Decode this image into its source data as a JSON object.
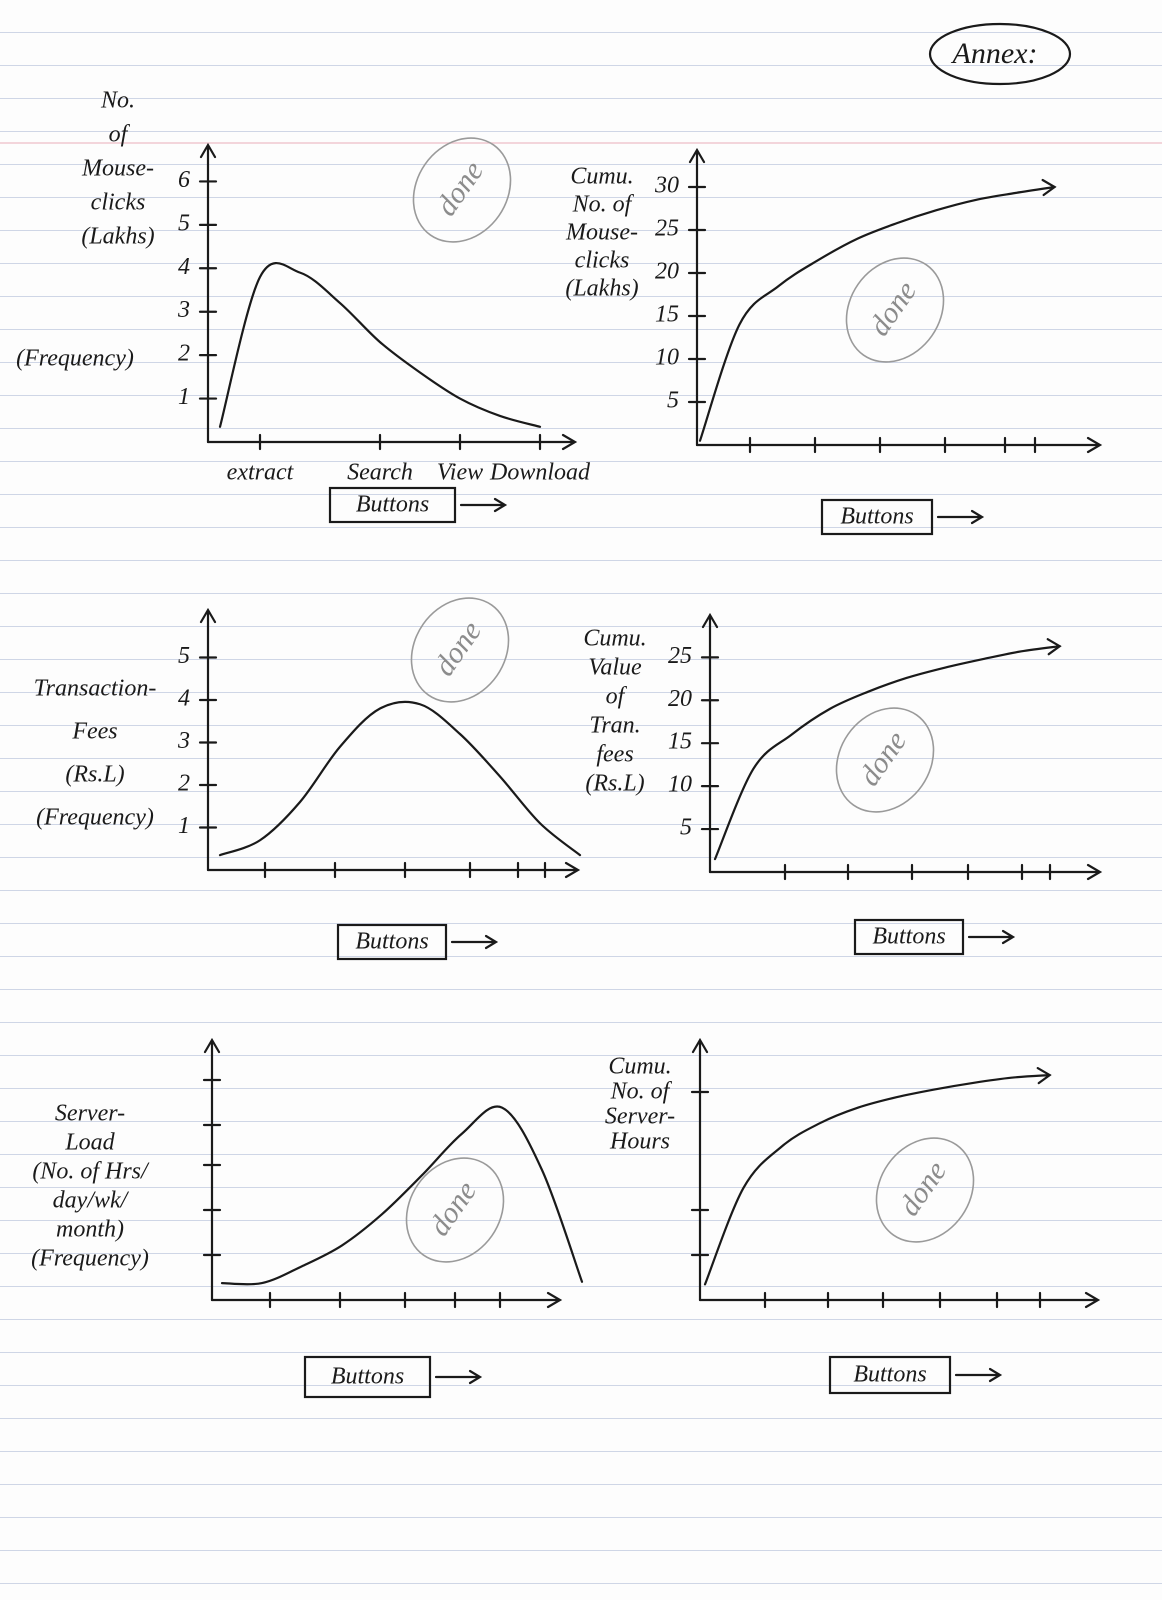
{
  "title": "Annex:",
  "chart_data": [
    {
      "type": "line",
      "ylabel": [
        "No.",
        "of",
        "Mouse-",
        "clicks",
        "(Lakhs)"
      ],
      "ylabel_note": "(Frequency)",
      "xlabel": "Buttons",
      "annotation": "done",
      "categories": [
        null,
        "extract",
        null,
        null,
        "Search",
        null,
        "View",
        null,
        "Download"
      ],
      "values": [
        0.35,
        3.8,
        3.9,
        3.2,
        2.3,
        1.6,
        1.0,
        0.6,
        0.35
      ],
      "ylim": [
        0,
        7
      ],
      "yticks": [
        1,
        2,
        3,
        4,
        5,
        6
      ]
    },
    {
      "type": "line",
      "ylabel": [
        "Cumu.",
        "No. of",
        "Mouse-",
        "clicks",
        "(Lakhs)"
      ],
      "xlabel": "Buttons",
      "annotation": "done",
      "categories": [
        null,
        null,
        null,
        null,
        null,
        null,
        null,
        null,
        null,
        null
      ],
      "values": [
        0.5,
        14,
        18.5,
        21.5,
        24,
        25.8,
        27.3,
        28.5,
        29.3,
        30
      ],
      "ylim": [
        0,
        35
      ],
      "yticks": [
        5,
        10,
        15,
        20,
        25,
        30
      ]
    },
    {
      "type": "line",
      "ylabel": [
        "Transaction-",
        "Fees",
        "(Rs.L)",
        "(Frequency)"
      ],
      "xlabel": "Buttons",
      "annotation": "done",
      "categories": [
        null,
        null,
        null,
        null,
        null,
        null,
        null,
        null,
        null,
        null
      ],
      "values": [
        0.35,
        0.7,
        1.6,
        2.9,
        3.8,
        3.9,
        3.2,
        2.2,
        1.1,
        0.35
      ],
      "ylim": [
        0,
        6
      ],
      "yticks": [
        1,
        2,
        3,
        4,
        5
      ]
    },
    {
      "type": "line",
      "ylabel": [
        "Cumu.",
        "Value",
        "of",
        "Tran.",
        "fees",
        "(Rs.L)"
      ],
      "xlabel": "Buttons",
      "annotation": "done",
      "categories": [
        null,
        null,
        null,
        null,
        null,
        null,
        null,
        null,
        null,
        null
      ],
      "values": [
        1.5,
        12,
        16,
        19,
        21,
        22.6,
        23.8,
        24.8,
        25.7,
        26.3
      ],
      "ylim": [
        0,
        29
      ],
      "yticks": [
        5,
        10,
        15,
        20,
        25
      ]
    },
    {
      "type": "line",
      "ylabel": [
        "Server-",
        "Load",
        "(No. of Hrs/",
        "day/wk/",
        "month)",
        "(Frequency)"
      ],
      "xlabel": "Buttons",
      "annotation": "done",
      "categories": [
        null,
        null,
        null,
        null,
        null,
        null,
        null,
        null,
        null,
        null
      ],
      "values": [
        0.65,
        0.65,
        1.3,
        2.1,
        3.3,
        4.8,
        6.4,
        7.4,
        5.0,
        0.7
      ],
      "ylim": [
        0,
        10
      ],
      "yticks": []
    },
    {
      "type": "line",
      "ylabel": [
        "Cumu.",
        "No. of",
        "Server-",
        "Hours"
      ],
      "xlabel": "Buttons",
      "annotation": "done",
      "categories": [
        null,
        null,
        null,
        null,
        null,
        null,
        null,
        null,
        null,
        null
      ],
      "values": [
        0.6,
        4.3,
        5.9,
        6.8,
        7.4,
        7.8,
        8.1,
        8.35,
        8.55,
        8.65
      ],
      "ylim": [
        0,
        10
      ],
      "yticks": []
    }
  ]
}
